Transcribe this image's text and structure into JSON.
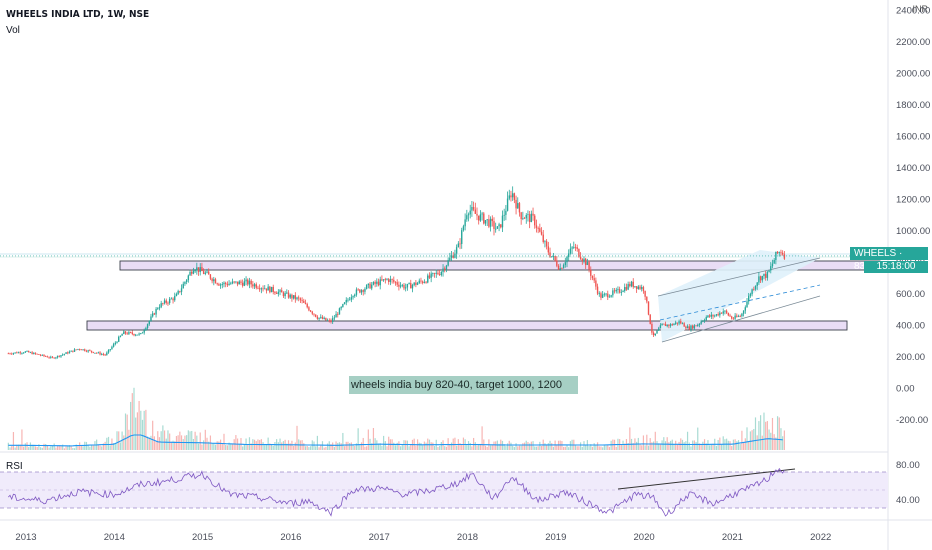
{
  "header": {
    "title": "WHEELS INDIA LTD, 1W, NSE",
    "volume_label": "Vol",
    "rsi_label": "RSI",
    "currency": "INR"
  },
  "annotation_text": "wheels india buy 820-40, target 1000, 1200",
  "price_label": {
    "symbol_price": "WHEELS · 838.65",
    "time_to_close": "15:18:00"
  },
  "colors": {
    "up": "#26a69a",
    "down": "#ef5350",
    "zone_fill": "#e9ddf5",
    "channel_fill": "#dff1fb",
    "rsi_line": "#7e57c2",
    "volume_ma": "#2196f3"
  },
  "chart_data": [
    {
      "type": "line",
      "panel": "price",
      "title": "WHEELS INDIA LTD, 1W, NSE",
      "x_tick_labels": [
        "2013",
        "2014",
        "2015",
        "2016",
        "2017",
        "2018",
        "2019",
        "2020",
        "2021",
        "2022"
      ],
      "y_tick_labels": [
        "2400.00",
        "2200.00",
        "2000.00",
        "1800.00",
        "1600.00",
        "1400.00",
        "1200.00",
        "1000.00",
        "800.00",
        "600.00",
        "400.00",
        "200.00",
        "0.00",
        "-200.00"
      ],
      "ylim": [
        -200,
        2400
      ],
      "series": [
        {
          "x": [
            2012.8,
            2013.0,
            2013.3,
            2013.6,
            2013.9,
            2014.1,
            2014.3,
            2014.5,
            2014.7,
            2014.9,
            2015.05,
            2015.2,
            2015.5,
            2015.8,
            2016.1,
            2016.3,
            2016.45,
            2016.7,
            2016.9,
            2017.1,
            2017.3,
            2017.5,
            2017.7,
            2017.9,
            2018.0,
            2018.1,
            2018.25,
            2018.35,
            2018.5,
            2018.6,
            2018.75,
            2018.9,
            2019.05,
            2019.2,
            2019.35,
            2019.5,
            2019.7,
            2019.85,
            2020.0,
            2020.1,
            2020.2,
            2020.3,
            2020.4,
            2020.5,
            2020.6,
            2020.7,
            2020.8,
            2020.9,
            2021.0,
            2021.1,
            2021.2,
            2021.3,
            2021.4,
            2021.5,
            2021.55,
            2021.6
          ],
          "values": [
            220,
            230,
            190,
            250,
            210,
            350,
            340,
            520,
            580,
            770,
            720,
            660,
            670,
            620,
            560,
            450,
            420,
            600,
            650,
            690,
            640,
            680,
            740,
            900,
            1140,
            1100,
            1050,
            1000,
            1250,
            1100,
            1070,
            880,
            760,
            900,
            790,
            580,
            610,
            660,
            630,
            320,
            400,
            400,
            420,
            380,
            400,
            450,
            460,
            490,
            440,
            460,
            600,
            700,
            720,
            850,
            870,
            838.65
          ]
        }
      ],
      "last_price": 838.65
    },
    {
      "type": "bar",
      "panel": "volume",
      "title": "Vol",
      "x": [
        2013.0,
        2013.5,
        2014.0,
        2014.25,
        2014.5,
        2015.0,
        2015.5,
        2016.0,
        2016.5,
        2017.0,
        2017.5,
        2018.0,
        2018.5,
        2019.0,
        2019.5,
        2020.0,
        2020.5,
        2021.0,
        2021.4,
        2021.6
      ],
      "values": [
        0.12,
        0.08,
        0.2,
        1.0,
        0.35,
        0.3,
        0.18,
        0.16,
        0.12,
        0.2,
        0.16,
        0.18,
        0.14,
        0.15,
        0.14,
        0.22,
        0.18,
        0.2,
        0.6,
        0.5
      ]
    },
    {
      "type": "line",
      "panel": "rsi",
      "title": "RSI",
      "y_tick_labels": [
        "80.00",
        "40.00"
      ],
      "ylim": [
        20,
        90
      ],
      "series": [
        {
          "x": [
            2012.8,
            2013.2,
            2013.6,
            2014.0,
            2014.3,
            2014.6,
            2015.0,
            2015.3,
            2015.6,
            2016.0,
            2016.2,
            2016.45,
            2016.7,
            2017.0,
            2017.3,
            2017.6,
            2017.9,
            2018.05,
            2018.3,
            2018.5,
            2018.8,
            2019.1,
            2019.4,
            2019.6,
            2019.9,
            2020.1,
            2020.25,
            2020.5,
            2020.8,
            2021.0,
            2021.2,
            2021.4,
            2021.5,
            2021.6
          ],
          "values": [
            52,
            48,
            58,
            55,
            66,
            70,
            78,
            55,
            52,
            45,
            48,
            35,
            60,
            62,
            55,
            60,
            68,
            78,
            50,
            75,
            48,
            58,
            44,
            35,
            55,
            52,
            32,
            55,
            45,
            55,
            62,
            72,
            84,
            80
          ]
        }
      ]
    }
  ]
}
